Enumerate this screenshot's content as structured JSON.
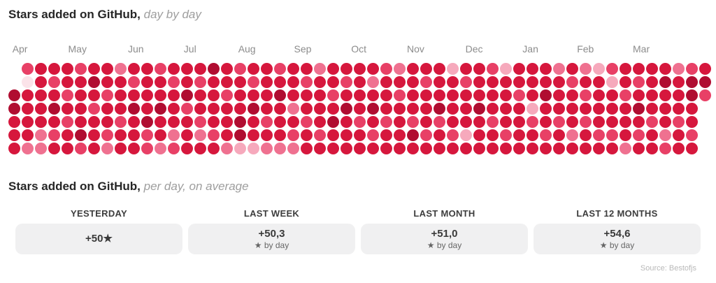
{
  "section_day_by_day": {
    "title_bold": "Stars added on GitHub,",
    "title_italic": " day by day"
  },
  "chart_data": {
    "type": "heatmap",
    "title": "Stars added on GitHub, day by day",
    "rows": 7,
    "cols": 53,
    "months": [
      {
        "label": "Apr",
        "week": 0.3
      },
      {
        "label": "May",
        "week": 4.5
      },
      {
        "label": "Jun",
        "week": 9
      },
      {
        "label": "Jul",
        "week": 13.2
      },
      {
        "label": "Aug",
        "week": 17.3
      },
      {
        "label": "Sep",
        "week": 21.5
      },
      {
        "label": "Oct",
        "week": 25.8
      },
      {
        "label": "Nov",
        "week": 30
      },
      {
        "label": "Dec",
        "week": 34.4
      },
      {
        "label": "Jan",
        "week": 38.7
      },
      {
        "label": "Feb",
        "week": 42.8
      },
      {
        "label": "Mar",
        "week": 47
      }
    ],
    "palette": {
      "1": "#fbe3e9",
      "2": "#f6a9bc",
      "3": "#ef7190",
      "4": "#e84066",
      "5": "#d6173d",
      "6": "#b00d31"
    },
    "grid": [
      "..66555",
      "4155553",
      "5555533",
      "5456545",
      "5545455",
      "4555564",
      "5654555",
      "5545543",
      "3555455",
      "5456555",
      "5555644",
      "4556553",
      "5455534",
      "5564555",
      "5455435",
      "6555545",
      "5545553",
      "4555662",
      "5456552",
      "5555453",
      "4565553",
      "5553543",
      "5455455",
      "3555545",
      "5545655",
      "5456555",
      "5555455",
      "5356545",
      "4555455",
      "3545555",
      "5555465",
      "5455545",
      "5556455",
      "2555545",
      "5455525",
      "5556555",
      "4555455",
      "2555545",
      "5545555",
      "5552455",
      "5565545",
      "3555455",
      "5455535",
      "3545455",
      "2555545",
      "4255545",
      "5545553",
      "5456545",
      "5555455",
      "5655534",
      "3555455",
      "4665545",
      "564...."
    ]
  },
  "section_average": {
    "title_bold": "Stars added on GitHub,",
    "title_italic": " per day, on average",
    "cards": [
      {
        "label": "YESTERDAY",
        "value": "+50★",
        "sub": ""
      },
      {
        "label": "LAST WEEK",
        "value": "+50,3",
        "sub": "★ by day"
      },
      {
        "label": "LAST MONTH",
        "value": "+51,0",
        "sub": "★ by day"
      },
      {
        "label": "LAST 12 MONTHS",
        "value": "+54,6",
        "sub": "★ by day"
      }
    ]
  },
  "footer": {
    "source": "Source: Bestofjs"
  }
}
